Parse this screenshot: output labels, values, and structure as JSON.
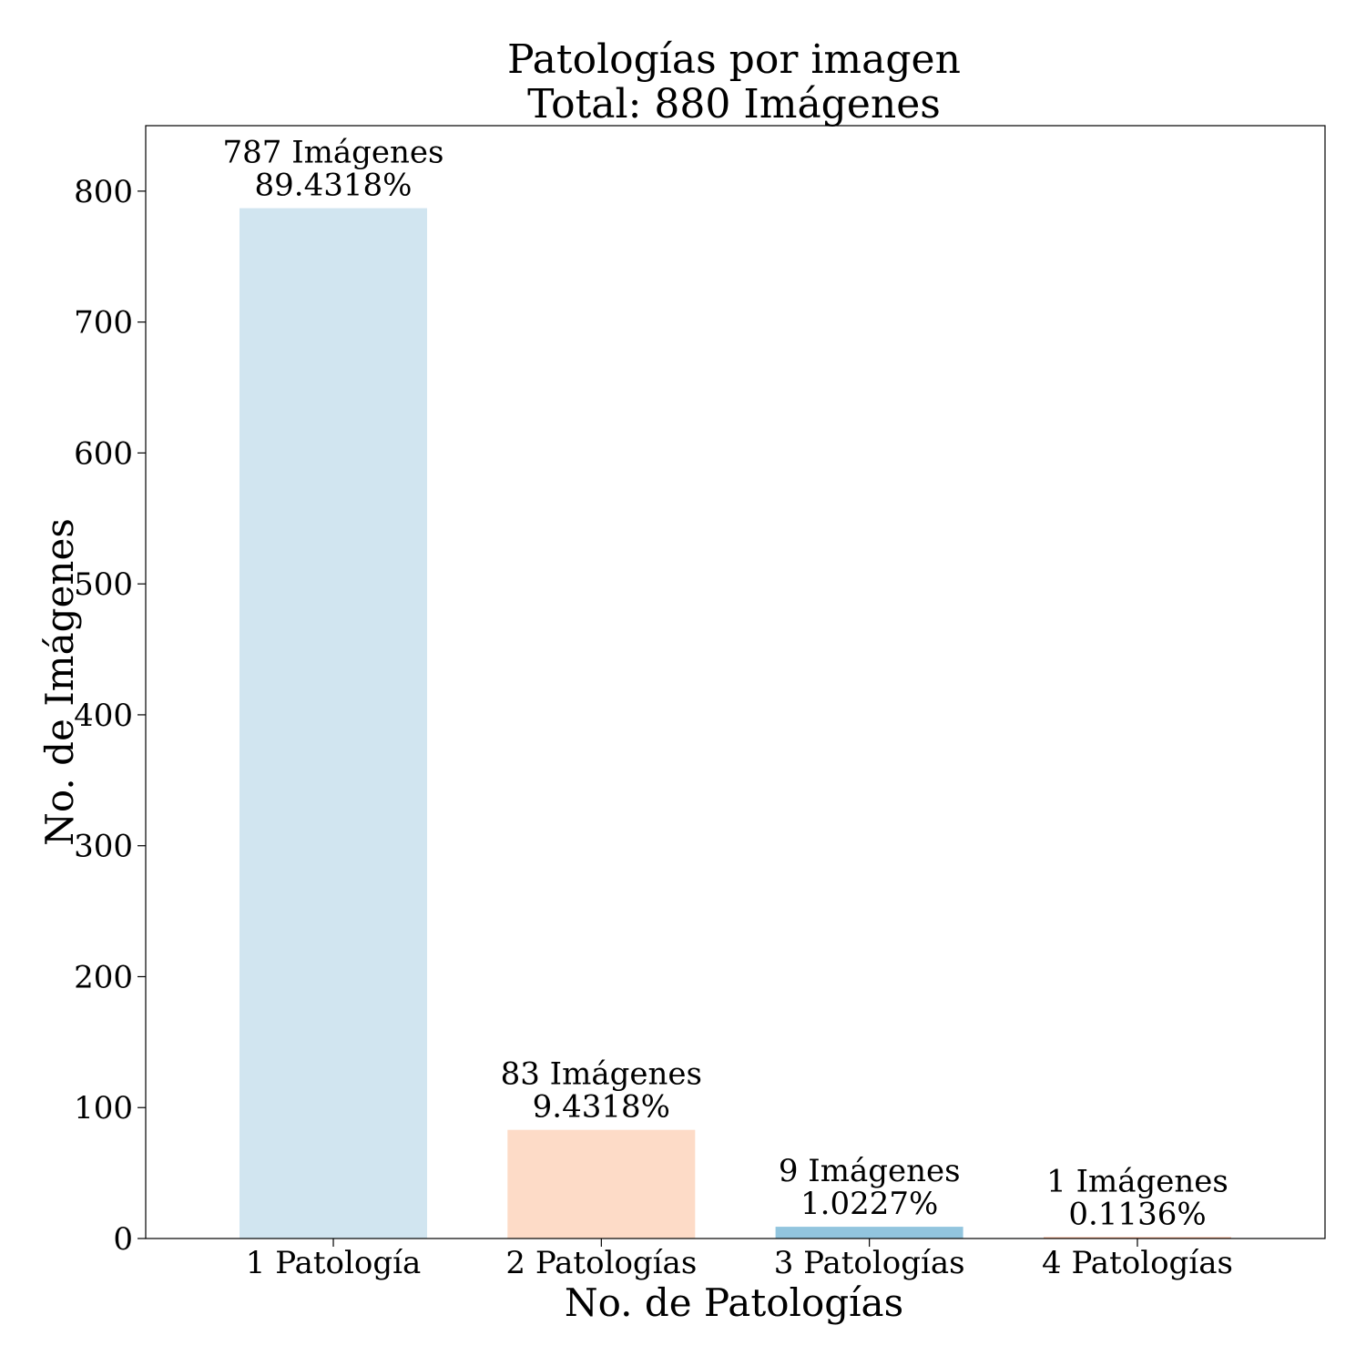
{
  "chart_data": {
    "type": "bar",
    "title": [
      "Patologías por imagen",
      "Total: 880 Imágenes"
    ],
    "xlabel": "No. de Patologías",
    "ylabel": "No. de Imágenes",
    "categories": [
      "1 Patología",
      "2 Patologías",
      "3 Patologías",
      "4 Patologías"
    ],
    "values": [
      787,
      83,
      9,
      1
    ],
    "data_labels": [
      [
        "787 Imágenes",
        "89.4318%"
      ],
      [
        "83 Imágenes",
        "9.4318%"
      ],
      [
        "9 Imágenes",
        "1.0227%"
      ],
      [
        "1 Imágenes",
        "0.1136%"
      ]
    ],
    "colors": [
      "#d1e5f0",
      "#fddbc7",
      "#92c5de",
      "#f4a582"
    ],
    "ylim": [
      0,
      850
    ],
    "yticks": [
      0,
      100,
      200,
      300,
      400,
      500,
      600,
      700,
      800
    ],
    "grid": false,
    "legend": "none"
  }
}
